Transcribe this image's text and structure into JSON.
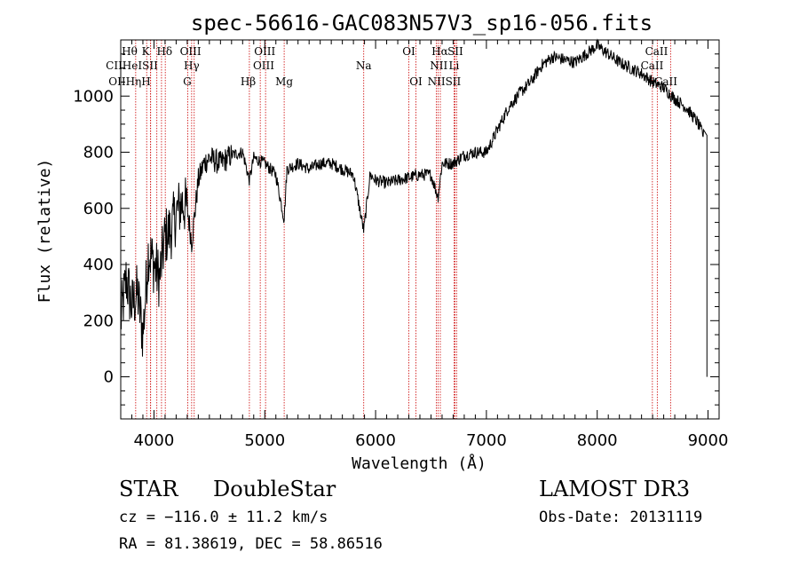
{
  "chart_data": {
    "type": "line",
    "title": "spec-56616-GAC083N57V3_sp16-056.fits",
    "xlabel": "Wavelength (Å)",
    "ylabel": "Flux (relative)",
    "xlim": [
      3700,
      9100
    ],
    "ylim": [
      -150,
      1200
    ],
    "xticks": [
      4000,
      5000,
      6000,
      7000,
      8000,
      9000
    ],
    "xtick_labels": [
      "4000",
      "5000",
      "6000",
      "7000",
      "8000",
      "9000"
    ],
    "yticks": [
      0,
      200,
      400,
      600,
      800,
      1000
    ],
    "ytick_labels": [
      "0",
      "200",
      "400",
      "600",
      "800",
      "1000"
    ],
    "grid": false,
    "series": [
      {
        "name": "spectrum",
        "x": [
          3700,
          3750,
          3800,
          3850,
          3900,
          3950,
          4000,
          4050,
          4100,
          4150,
          4200,
          4250,
          4300,
          4340,
          4400,
          4450,
          4500,
          4600,
          4700,
          4800,
          4861,
          4900,
          5000,
          5100,
          5175,
          5200,
          5300,
          5400,
          5500,
          5600,
          5700,
          5800,
          5893,
          5950,
          6000,
          6100,
          6200,
          6300,
          6400,
          6500,
          6563,
          6600,
          6700,
          6800,
          6900,
          7000,
          7100,
          7200,
          7300,
          7400,
          7500,
          7600,
          7700,
          7800,
          7900,
          8000,
          8100,
          8200,
          8300,
          8400,
          8500,
          8600,
          8700,
          8800,
          8900,
          8960,
          8990
        ],
        "y": [
          200,
          350,
          250,
          300,
          150,
          450,
          400,
          350,
          500,
          520,
          580,
          620,
          600,
          480,
          700,
          760,
          780,
          760,
          790,
          800,
          700,
          780,
          760,
          720,
          560,
          740,
          760,
          740,
          760,
          760,
          740,
          720,
          520,
          720,
          700,
          690,
          700,
          710,
          720,
          720,
          640,
          760,
          760,
          790,
          800,
          800,
          880,
          960,
          1010,
          1050,
          1110,
          1140,
          1130,
          1120,
          1150,
          1180,
          1150,
          1120,
          1100,
          1080,
          1050,
          1030,
          990,
          960,
          910,
          860,
          0
        ]
      }
    ],
    "lines": [
      {
        "name": "H8",
        "x": 3835
      },
      {
        "name": "CaII-K",
        "x": 3934
      },
      {
        "name": "CaII-H",
        "x": 3969
      },
      {
        "name": "Heps",
        "x": 3970
      },
      {
        "name": "HeI",
        "x": 4026
      },
      {
        "name": "SII-4068",
        "x": 4068
      },
      {
        "name": "Hdelta",
        "x": 4102
      },
      {
        "name": "Hgamma",
        "x": 4340
      },
      {
        "name": "G-band",
        "x": 4305
      },
      {
        "name": "OIII-4363",
        "x": 4363
      },
      {
        "name": "Hbeta",
        "x": 4861
      },
      {
        "name": "OIII-4959",
        "x": 4959
      },
      {
        "name": "OIII-5007",
        "x": 5007
      },
      {
        "name": "Mg",
        "x": 5175
      },
      {
        "name": "Na",
        "x": 5893
      },
      {
        "name": "OI-6300",
        "x": 6300
      },
      {
        "name": "OI-6364",
        "x": 6364
      },
      {
        "name": "NII-6548",
        "x": 6548
      },
      {
        "name": "Halpha",
        "x": 6563
      },
      {
        "name": "NII-6584",
        "x": 6584
      },
      {
        "name": "SII-6717",
        "x": 6717
      },
      {
        "name": "SII-6731",
        "x": 6731
      },
      {
        "name": "Li",
        "x": 6708
      },
      {
        "name": "CaII-8498",
        "x": 8498
      },
      {
        "name": "CaII-8542",
        "x": 8542
      },
      {
        "name": "CaII-8662",
        "x": 8662
      }
    ],
    "line_labels": [
      {
        "text": "Hθ",
        "x": 3780,
        "row": 1
      },
      {
        "text": "K",
        "x": 3925,
        "row": 1
      },
      {
        "text": "Hδ",
        "x": 4095,
        "row": 1
      },
      {
        "text": "OIII",
        "x": 4330,
        "row": 1
      },
      {
        "text": "OIII",
        "x": 5000,
        "row": 1
      },
      {
        "text": "OI",
        "x": 6300,
        "row": 1
      },
      {
        "text": "Hα",
        "x": 6580,
        "row": 1
      },
      {
        "text": "SII",
        "x": 6720,
        "row": 1
      },
      {
        "text": "CaII",
        "x": 8535,
        "row": 1
      },
      {
        "text": "CIIHeISII",
        "x": 3800,
        "row": 2
      },
      {
        "text": "Hγ",
        "x": 4340,
        "row": 2
      },
      {
        "text": "OIII",
        "x": 4990,
        "row": 2
      },
      {
        "text": "Na",
        "x": 5893,
        "row": 2
      },
      {
        "text": "NII",
        "x": 6570,
        "row": 2
      },
      {
        "text": "Li",
        "x": 6708,
        "row": 2
      },
      {
        "text": "CaII",
        "x": 8495,
        "row": 2
      },
      {
        "text": "OIIHηH",
        "x": 3780,
        "row": 3
      },
      {
        "text": "G",
        "x": 4300,
        "row": 3
      },
      {
        "text": "Hβ",
        "x": 4850,
        "row": 3
      },
      {
        "text": "Mg",
        "x": 5175,
        "row": 3
      },
      {
        "text": "OI",
        "x": 6364,
        "row": 3
      },
      {
        "text": "NIISII",
        "x": 6620,
        "row": 3
      },
      {
        "text": "CaII",
        "x": 8620,
        "row": 3
      }
    ]
  },
  "info": {
    "object_class": "STAR",
    "subclass": "DoubleStar",
    "survey": "LAMOST DR3",
    "cz": "cz = −116.0 ± 11.2 km/s",
    "obs_date": "Obs-Date: 20131119",
    "coords": "RA =  81.38619, DEC =  58.86516"
  },
  "colors": {
    "spectrum": "#000000",
    "line_markers": "#cc0000",
    "axes": "#000000"
  }
}
